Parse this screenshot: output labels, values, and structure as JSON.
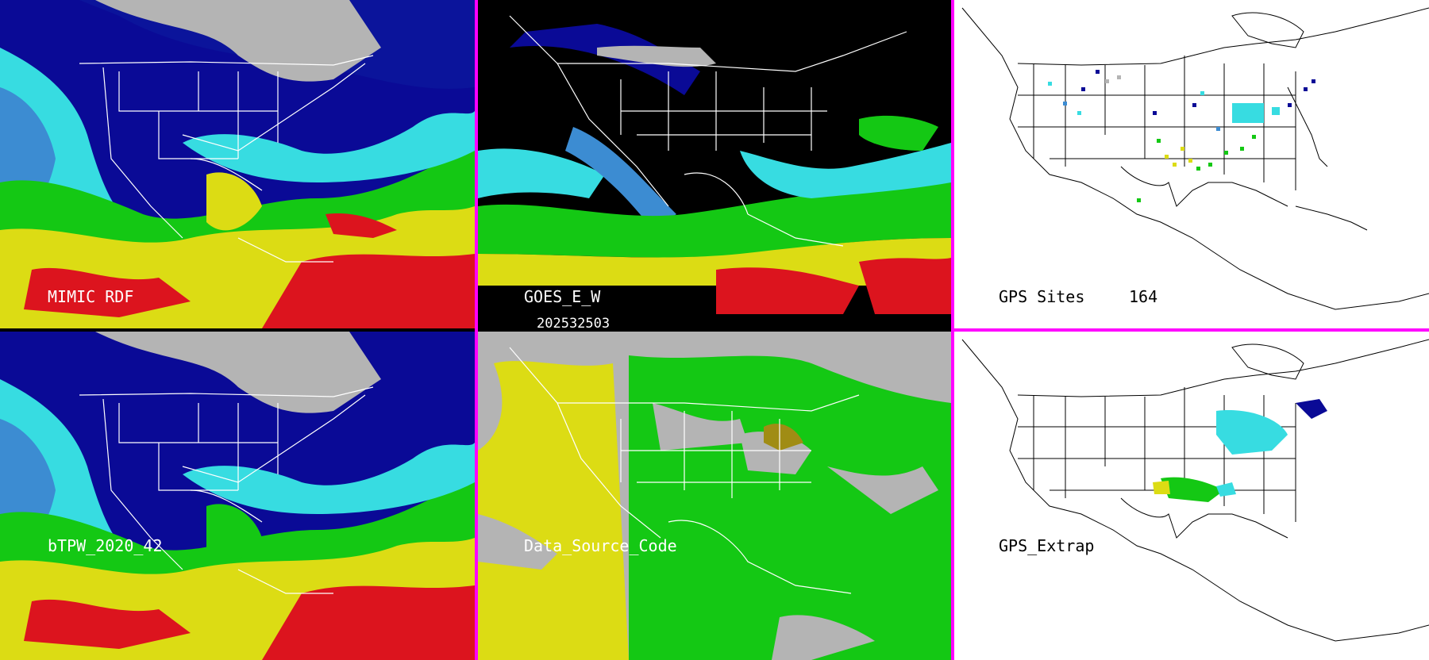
{
  "panels": [
    {
      "id": "mimic",
      "label": "MIMIC RDF",
      "style": "full"
    },
    {
      "id": "goes",
      "label": "GOES_E_W",
      "style": "goes"
    },
    {
      "id": "gps-sites",
      "label": "GPS Sites",
      "count": "164",
      "style": "sites"
    },
    {
      "id": "btpw",
      "label": "bTPW_2020_42",
      "style": "full"
    },
    {
      "id": "dsc",
      "label": "Data_Source_Code",
      "style": "source"
    },
    {
      "id": "gps-extrap",
      "label": "GPS_Extrap",
      "style": "extrap"
    }
  ],
  "timestamp": "202532503",
  "colors": {
    "separator": "#ff00ff",
    "very_dry": "#b4b4b4",
    "dry": "#0a0a96",
    "moist_low": "#3c8cd2",
    "moist": "#37dce1",
    "humid": "#14c814",
    "very_humid": "#dcdc14",
    "saturated": "#dc141e",
    "coastline": "#ffffff"
  }
}
